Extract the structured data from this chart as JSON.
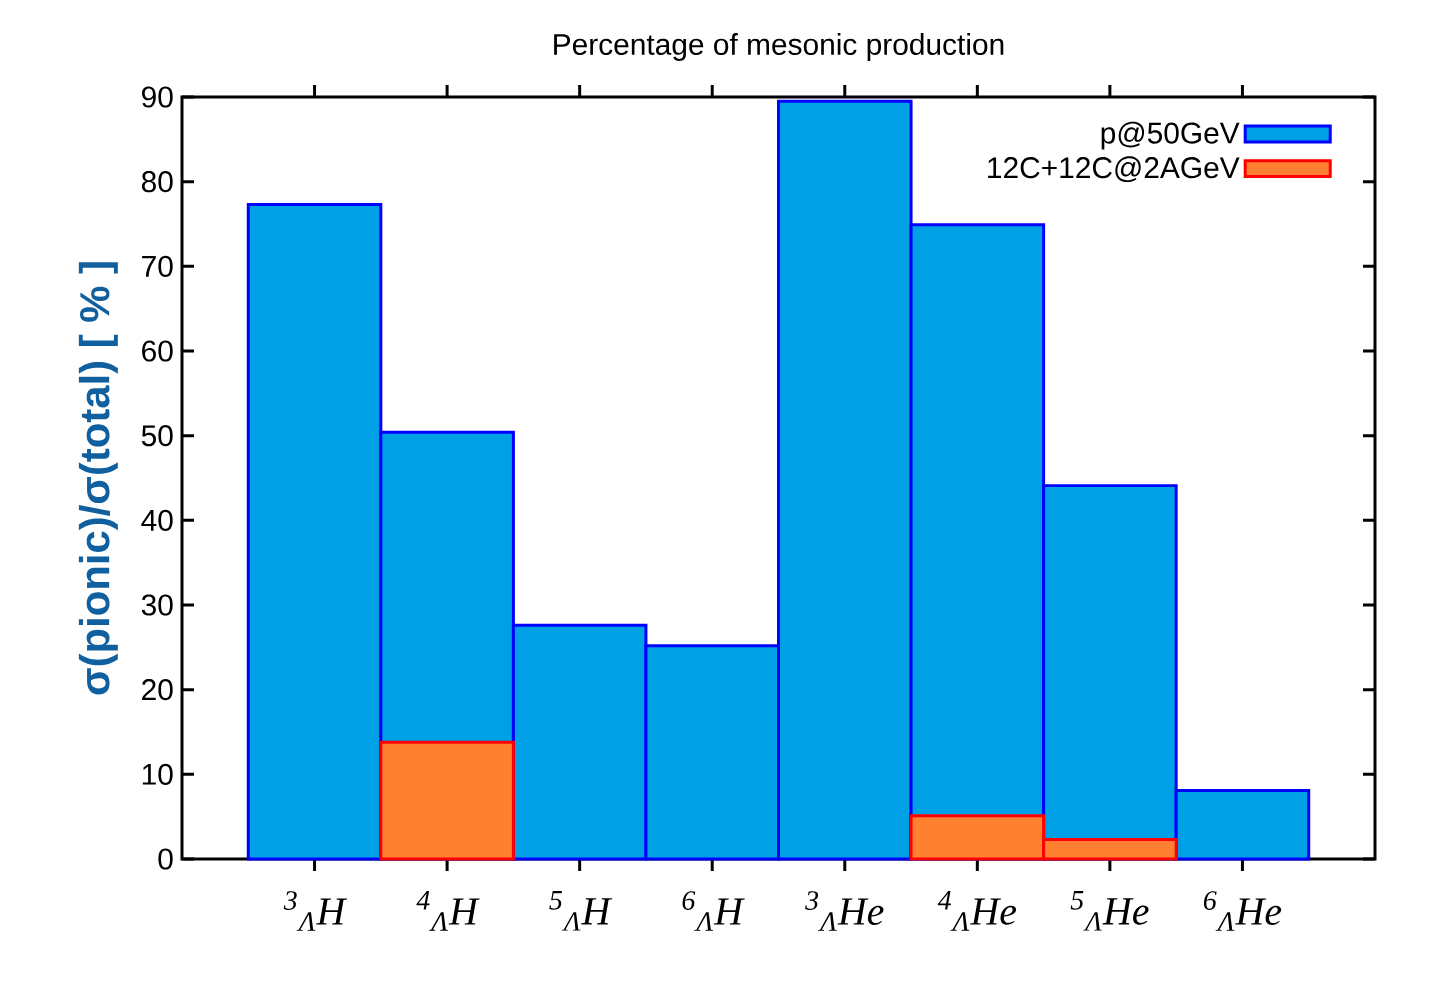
{
  "chart_data": {
    "type": "bar",
    "title": "Percentage of mesonic production",
    "ylabel": "σ(pionic)/σ(total) [ % ]",
    "categories": [
      "$^{3}$$_{Λ}$*H*",
      "$^{4}$$_{Λ}$*H*",
      "$^{5}$$_{Λ}$*H*",
      "$^{6}$$_{Λ}$*H*",
      "$^{3}$$_{Λ}$*He*",
      "$^{4}$$_{Λ}$*He*",
      "$^{5}$$_{Λ}$*He*",
      "$^{6}$$_{Λ}$*He*"
    ],
    "series": [
      {
        "name": "p@50GeV",
        "color": "#00a0e6",
        "values": [
          77.3,
          50.4,
          27.6,
          25.2,
          89.5,
          74.9,
          44.1,
          8.1
        ]
      },
      {
        "name": "12C+12C@2AGeV",
        "color": "#ff8030",
        "values": [
          null,
          13.8,
          null,
          null,
          null,
          5.1,
          2.3,
          null
        ]
      }
    ],
    "ylim": [
      0,
      90
    ],
    "yticks": [
      0,
      10,
      20,
      30,
      40,
      50,
      60,
      70,
      80,
      90
    ],
    "legend": "top right",
    "grid": false
  }
}
